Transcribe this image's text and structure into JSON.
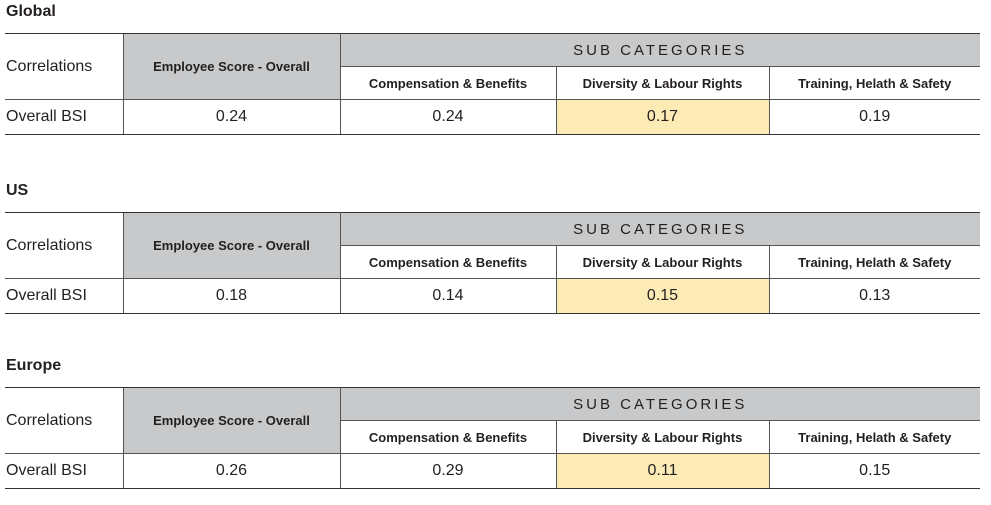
{
  "corr_label": "Correlations",
  "emp_label": "Employee Score - Overall",
  "subcat_label": "SUB CATEGORIES",
  "subcategories": [
    "Compensation & Benefits",
    "Diversity & Labour Rights",
    "Training, Helath & Safety"
  ],
  "row_label": "Overall BSI",
  "highlight_color": "#fdebb6",
  "header_color": "#c8c9ca",
  "sections": [
    {
      "title": "Global",
      "values": [
        "0.24",
        "0.24",
        "0.17",
        "0.19"
      ]
    },
    {
      "title": "US",
      "values": [
        "0.18",
        "0.14",
        "0.15",
        "0.13"
      ]
    },
    {
      "title": "Europe",
      "values": [
        "0.26",
        "0.29",
        "0.11",
        "0.15"
      ]
    }
  ]
}
